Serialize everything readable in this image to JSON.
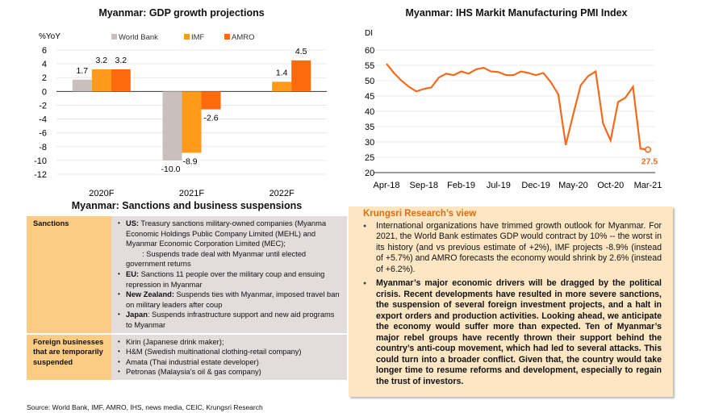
{
  "gdp_title": "Myanmar: GDP growth projections",
  "pmi_title": "Myanmar: IHS Markit Manufacturing PMI Index",
  "chart_data": [
    {
      "type": "bar",
      "title": "Myanmar: GDP growth projections",
      "ylabel": "%YoY",
      "categories": [
        "2020F",
        "2021F",
        "2022F"
      ],
      "series": [
        {
          "name": "World Bank",
          "color": "#c9c0bd",
          "values": [
            1.7,
            -10.0,
            null
          ]
        },
        {
          "name": "IMF",
          "color": "#ff9a1a",
          "values": [
            3.2,
            -8.9,
            1.4
          ]
        },
        {
          "name": "AMRO",
          "color": "#fe6a0c",
          "values": [
            3.2,
            -2.6,
            4.5
          ]
        }
      ],
      "ylim": [
        -12,
        6
      ],
      "yticks": [
        6,
        4,
        2,
        0,
        -2,
        -4,
        -6,
        -8,
        -10,
        -12
      ],
      "legend": "top",
      "grid": true
    },
    {
      "type": "line",
      "title": "Myanmar: IHS Markit Manufacturing PMI Index",
      "ylabel": "DI",
      "ylim": [
        20,
        60
      ],
      "yticks": [
        60,
        55,
        50,
        45,
        40,
        35,
        30,
        25,
        20
      ],
      "xticks": [
        "Apr-18",
        "Sep-18",
        "Feb-19",
        "Jul-19",
        "Dec-19",
        "May-20",
        "Oct-20",
        "Mar-21"
      ],
      "values": [
        55.5,
        52.5,
        50,
        48,
        46.5,
        47.3,
        47.8,
        51,
        52.3,
        51.8,
        53,
        52.3,
        53.7,
        54.2,
        53,
        52.8,
        51.8,
        51.8,
        53,
        52.5,
        51.8,
        52.5,
        49.5,
        45.5,
        29,
        39,
        48.5,
        51.5,
        53,
        36,
        30.5,
        43,
        44.5,
        48,
        27.8,
        27.5
      ],
      "last_label": "27.5",
      "color": "#f26b1d",
      "grid": true
    }
  ],
  "table": {
    "title": "Myanmar: Sanctions and business suspensions",
    "rows": [
      {
        "label": "Sanctions",
        "items": [
          {
            "bold": "US:",
            "text": " Treasury sanctions military-owned companies (Myanma Economic Holdings Public Company Limited (MEHL) and Myanmar Economic Corporation Limited (MEC);"
          },
          {
            "bold": "",
            "text": ": Suspends trade deal with Myanmar until elected government returns",
            "nobullet": true
          },
          {
            "bold": "EU:",
            "text": " Sanctions 11 people over the military coup and ensuing repression in Myanmar"
          },
          {
            "bold": "New Zealand:",
            "text": " Suspends ties with Myanmar, imposed travel ban on military leaders after coup"
          },
          {
            "bold": "Japan",
            "text": ": Suspends infrastructure support and new aid programs to Myanmar"
          }
        ]
      },
      {
        "label": "Foreign businesses that are temporarily suspended",
        "items": [
          {
            "bold": "",
            "text": "Kirin (Japanese drink maker);"
          },
          {
            "bold": "",
            "text": "H&M (Swedish multinational clothing-retail company)"
          },
          {
            "bold": "",
            "text": "Amata (Thai industrial estate developer)"
          },
          {
            "bold": "",
            "text": "Petronas (Malaysia’s oil & gas company)"
          }
        ]
      }
    ]
  },
  "view": {
    "title": "Krungsri Research’s view",
    "p1": "International organizations have trimmed growth outlook for Myanmar. For 2021, the World Bank estimates GDP would contract by 10% -- the worst in its history (and vs previous estimate of +2%), IMF projects -8.9% (instead of +5.7%) and AMRO forecasts the economy would shrink by 2.6% (instead of +6.2%).",
    "p2": "Myanmar’s major economic drivers will be dragged by the political crisis. Recent developments have resulted in more severe sanctions, the suspension of several foreign investment projects, and a halt in export orders and production activities. Looking ahead, we anticipate the economy would suffer more than expected. Ten of Myanmar’s major rebel groups have recently thrown their support behind the country’s anti-coup movement, which had led to several attacks. This could turn into a broader conflict. Given that, the country would take longer time to resume reforms and development, especially to regain the trust of investors."
  },
  "source": "Source: World Bank, IMF, AMRO, IHS, news media, CEIC, Krungsri Research"
}
